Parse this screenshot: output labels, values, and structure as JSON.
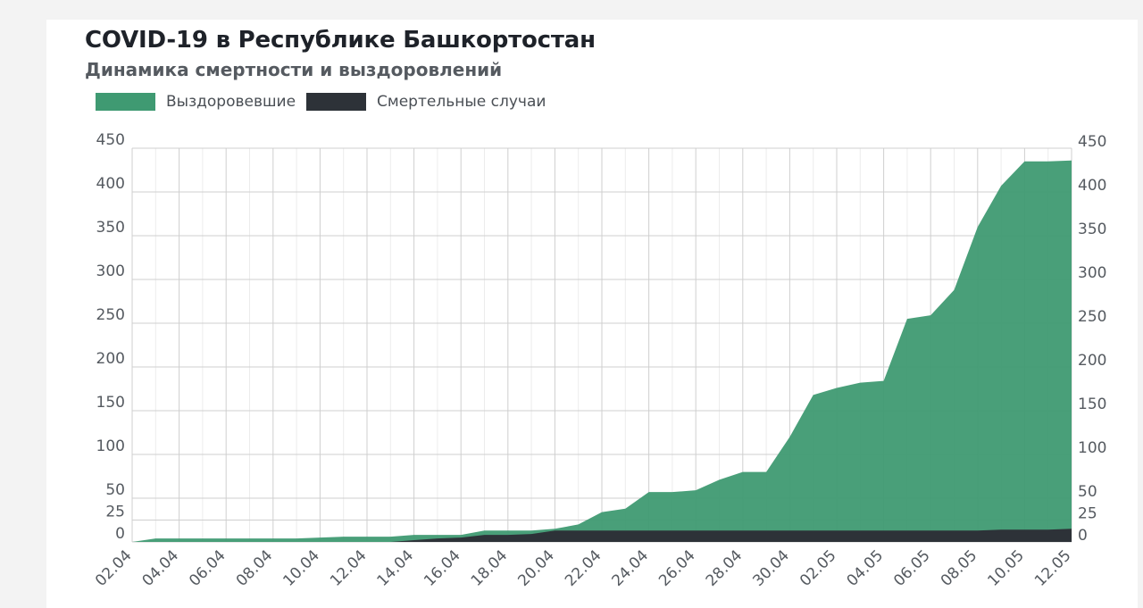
{
  "header": {
    "title": "COVID-19 в Республике Башкортостан",
    "subtitle": "Динамика смертности и выздоровлений"
  },
  "chart_data": {
    "type": "area",
    "title": "COVID-19 в Республике Башкортостан",
    "subtitle": "Динамика смертности и выздоровлений",
    "xlabel": "",
    "ylabel": "",
    "ylim": [
      0,
      450
    ],
    "y_ticks": [
      0,
      25,
      50,
      100,
      150,
      200,
      250,
      300,
      350,
      400,
      450
    ],
    "dual_y_axis": true,
    "grid": true,
    "legend_position": "top-left",
    "x_tick_labels": [
      "02.04",
      "04.04",
      "06.04",
      "08.04",
      "10.04",
      "12.04",
      "14.04",
      "16.04",
      "18.04",
      "20.04",
      "22.04",
      "24.04",
      "26.04",
      "28.04",
      "30.04",
      "02.05",
      "04.05",
      "06.05",
      "08.05",
      "10.05",
      "12.05"
    ],
    "x": [
      "02.04",
      "03.04",
      "04.04",
      "05.04",
      "06.04",
      "07.04",
      "08.04",
      "09.04",
      "10.04",
      "11.04",
      "12.04",
      "13.04",
      "14.04",
      "15.04",
      "16.04",
      "17.04",
      "18.04",
      "19.04",
      "20.04",
      "21.04",
      "22.04",
      "23.04",
      "24.04",
      "25.04",
      "26.04",
      "27.04",
      "28.04",
      "29.04",
      "30.04",
      "01.05",
      "02.05",
      "03.05",
      "04.05",
      "05.05",
      "06.05",
      "07.05",
      "08.05",
      "09.05",
      "10.05",
      "11.05",
      "12.05"
    ],
    "series": [
      {
        "name": "Выздоровевшие",
        "color": "#3f9a72",
        "values": [
          0,
          4,
          4,
          4,
          4,
          4,
          4,
          4,
          5,
          6,
          6,
          6,
          8,
          8,
          8,
          13,
          13,
          13,
          15,
          20,
          34,
          38,
          57,
          57,
          59,
          71,
          80,
          80,
          120,
          168,
          176,
          182,
          184,
          255,
          259,
          288,
          360,
          407,
          435,
          435,
          436
        ]
      },
      {
        "name": "Смертельные случаи",
        "color": "#2d3238",
        "values": [
          0,
          0,
          0,
          0,
          0,
          0,
          0,
          0,
          0,
          0,
          0,
          0,
          2,
          4,
          5,
          8,
          8,
          9,
          13,
          13,
          13,
          13,
          13,
          13,
          13,
          13,
          13,
          13,
          13,
          13,
          13,
          13,
          13,
          13,
          13,
          13,
          13,
          14,
          14,
          14,
          15
        ]
      }
    ]
  }
}
